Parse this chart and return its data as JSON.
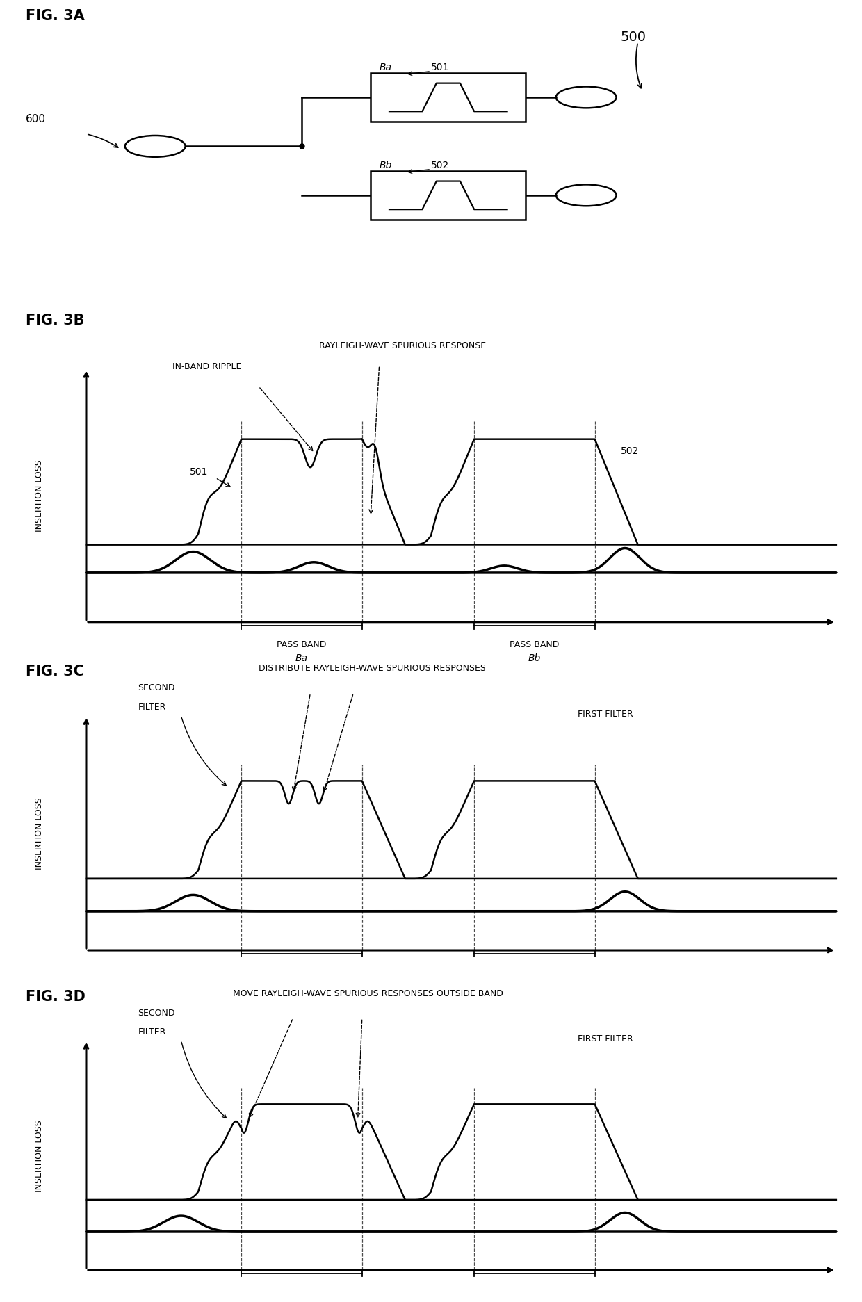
{
  "fig_labels": [
    "FIG. 3A",
    "FIG. 3B",
    "FIG. 3C",
    "FIG. 3D"
  ],
  "bg_color": "#ffffff",
  "line_color": "#000000",
  "annotations_3b": {
    "in_band_ripple": "IN-BAND RIPPLE",
    "rayleigh": "RAYLEIGH-WAVE SPURIOUS RESPONSE",
    "label_501": "501",
    "label_502": "502",
    "pass_band_ba": "PASS BAND",
    "ba": "Ba",
    "pass_band_bb": "PASS BAND",
    "bb": "Bb",
    "insertion_loss": "INSERTION LOSS"
  },
  "annotations_3c": {
    "second": "SECOND",
    "filter": "FILTER",
    "distribute": "DISTRIBUTE RAYLEIGH-WAVE SPURIOUS RESPONSES",
    "first_filter": "FIRST FILTER",
    "insertion_loss": "INSERTION LOSS"
  },
  "annotations_3d": {
    "second": "SECOND",
    "filter": "FILTER",
    "move": "MOVE RAYLEIGH-WAVE SPURIOUS RESPONSES OUTSIDE BAND",
    "first_filter": "FIRST FILTER",
    "insertion_loss": "INSERTION LOSS"
  },
  "font_fig_label": 15,
  "font_annotation": 9,
  "font_axis_label": 9
}
